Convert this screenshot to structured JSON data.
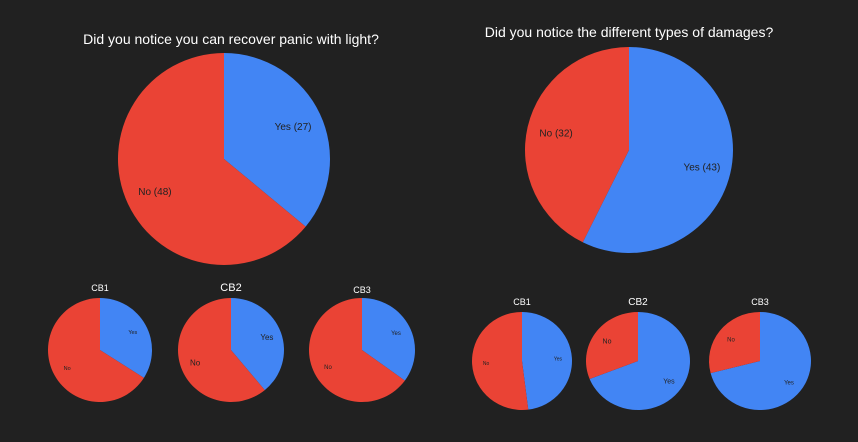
{
  "colors": {
    "yes": "#4285F4",
    "no": "#EA4335",
    "background": "#212121",
    "title": "#FFFFFF",
    "label": "#222222"
  },
  "chart_data": [
    {
      "type": "pie",
      "title": "Did you notice you can recover panic with light?",
      "labels": [
        "Yes (27)",
        "No (48)"
      ],
      "values": [
        27,
        48
      ]
    },
    {
      "type": "pie",
      "title": "Did you notice the different types of damages?",
      "labels": [
        "Yes (43)",
        "No (32)"
      ],
      "values": [
        43,
        32
      ]
    },
    {
      "type": "pie",
      "title": "CB1",
      "labels": [
        "Yes",
        "No"
      ],
      "values": [
        0.34,
        0.66
      ]
    },
    {
      "type": "pie",
      "title": "CB2",
      "labels": [
        "Yes",
        "No"
      ],
      "values": [
        0.39,
        0.61
      ]
    },
    {
      "type": "pie",
      "title": "CB3",
      "labels": [
        "Yes",
        "No"
      ],
      "values": [
        0.35,
        0.65
      ]
    },
    {
      "type": "pie",
      "title": "CB1",
      "labels": [
        "Yes",
        "No"
      ],
      "values": [
        0.48,
        0.52
      ]
    },
    {
      "type": "pie",
      "title": "CB2",
      "labels": [
        "Yes",
        "No"
      ],
      "values": [
        0.69,
        0.31
      ]
    },
    {
      "type": "pie",
      "title": "CB3",
      "labels": [
        "Yes",
        "No"
      ],
      "values": [
        0.71,
        0.29
      ]
    }
  ]
}
